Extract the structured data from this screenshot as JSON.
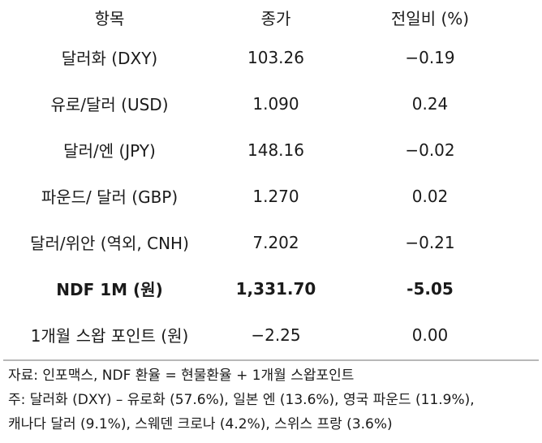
{
  "table": {
    "headers": [
      "항목",
      "종가",
      "전일비 (%)"
    ],
    "rows": [
      {
        "item": "달러화 (DXY)",
        "close": "103.26",
        "change": "−0.19",
        "bold": false
      },
      {
        "item": "유로/달러 (USD)",
        "close": "1.090",
        "change": "0.24",
        "bold": false
      },
      {
        "item": "달러/엔 (JPY)",
        "close": "148.16",
        "change": "−0.02",
        "bold": false
      },
      {
        "item": "파운드/ 달러 (GBP)",
        "close": "1.270",
        "change": "0.02",
        "bold": false
      },
      {
        "item": "달러/위안 (역외, CNH)",
        "close": "7.202",
        "change": "−0.21",
        "bold": false
      },
      {
        "item": "NDF 1M (원)",
        "close": "1,331.70",
        "change": "-5.05",
        "bold": true
      },
      {
        "item": "1개월 스왑 포인트 (원)",
        "close": "−2.25",
        "change": "0.00",
        "bold": false
      }
    ]
  },
  "notes": {
    "source": "자료: 인포맥스, NDF 환율 = 현물환율 + 1개월 스왑포인트",
    "note_line1": "주: 달러화 (DXY) – 유로화 (57.6%), 일본 엔 (13.6%), 영국 파운드 (11.9%),",
    "note_line2": "캐나다 달러 (9.1%), 스웨덴 크로나 (4.2%), 스위스 프랑 (3.6%)"
  }
}
